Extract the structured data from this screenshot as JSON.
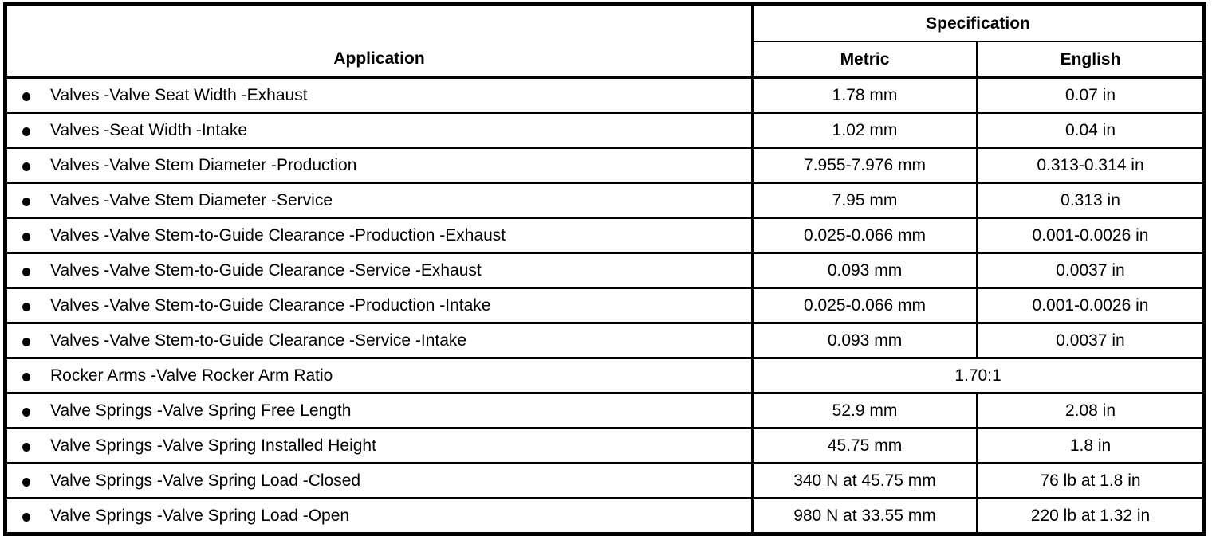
{
  "table": {
    "header": {
      "application": "Application",
      "specification": "Specification",
      "metric": "Metric",
      "english": "English"
    },
    "rows": [
      {
        "application": "Valves -Valve Seat Width -Exhaust",
        "metric": "1.78 mm",
        "english": "0.07 in"
      },
      {
        "application": "Valves -Seat Width -Intake",
        "metric": "1.02 mm",
        "english": "0.04 in"
      },
      {
        "application": "Valves -Valve Stem Diameter -Production",
        "metric": "7.955-7.976 mm",
        "english": "0.313-0.314 in"
      },
      {
        "application": "Valves -Valve Stem Diameter -Service",
        "metric": "7.95 mm",
        "english": "0.313 in"
      },
      {
        "application": "Valves -Valve Stem-to-Guide Clearance -Production -Exhaust",
        "metric": "0.025-0.066 mm",
        "english": "0.001-0.0026 in"
      },
      {
        "application": "Valves -Valve Stem-to-Guide Clearance -Service -Exhaust",
        "metric": "0.093 mm",
        "english": "0.0037 in"
      },
      {
        "application": "Valves -Valve Stem-to-Guide Clearance -Production -Intake",
        "metric": "0.025-0.066 mm",
        "english": "0.001-0.0026 in"
      },
      {
        "application": "Valves -Valve Stem-to-Guide Clearance -Service -Intake",
        "metric": "0.093 mm",
        "english": "0.0037 in"
      },
      {
        "application": "Rocker Arms -Valve Rocker Arm Ratio",
        "combined": "1.70:1"
      },
      {
        "application": "Valve Springs -Valve Spring Free Length",
        "metric": "52.9 mm",
        "english": "2.08 in"
      },
      {
        "application": "Valve Springs -Valve Spring Installed Height",
        "metric": "45.75 mm",
        "english": "1.8 in"
      },
      {
        "application": "Valve Springs -Valve Spring Load -Closed",
        "metric": "340 N at 45.75 mm",
        "english": "76 lb at 1.8 in"
      },
      {
        "application": "Valve Springs -Valve Spring Load -Open",
        "metric": "980 N at 33.55 mm",
        "english": "220 lb at 1.32 in"
      }
    ],
    "colors": {
      "border": "#000000",
      "text": "#000000",
      "background": "#ffffff"
    }
  }
}
